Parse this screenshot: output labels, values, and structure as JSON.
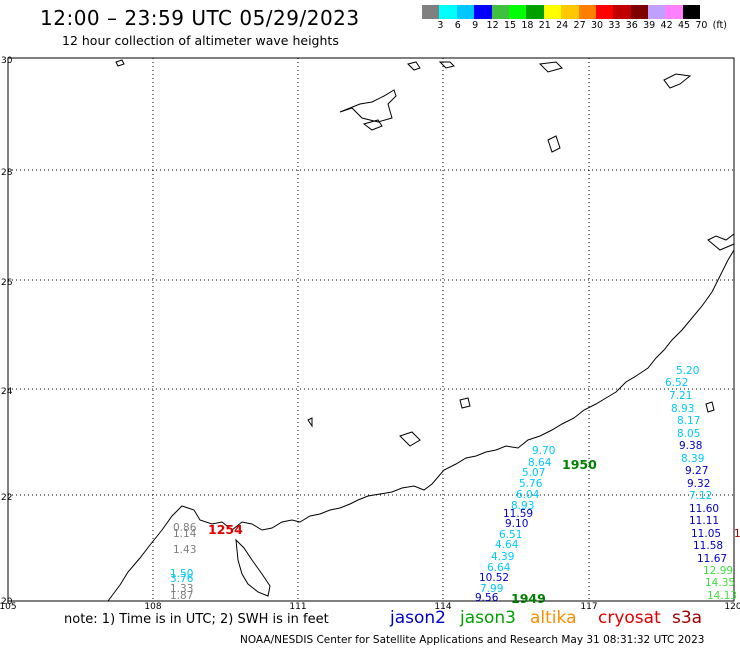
{
  "header": {
    "title": "12:00 – 23:59 UTC 05/29/2023",
    "subtitle": "12 hour collection of altimeter wave heights"
  },
  "scale": {
    "unit": "(ft)",
    "labels": [
      "3",
      "6",
      "9",
      "12",
      "15",
      "18",
      "21",
      "24",
      "27",
      "30",
      "33",
      "36",
      "39",
      "42",
      "45",
      "70"
    ],
    "colors": [
      "#808080",
      "#00ffff",
      "#00c8ff",
      "#0000ff",
      "#40c040",
      "#00ff00",
      "#00a000",
      "#ffff00",
      "#ffc800",
      "#ff8000",
      "#ff0000",
      "#c00000",
      "#800000",
      "#c0a0ff",
      "#ff80ff",
      "#000000"
    ]
  },
  "axes": {
    "lat_labels": [
      "30",
      "28",
      "26",
      "24",
      "22",
      "20"
    ],
    "lon_labels": [
      "105",
      "108",
      "111",
      "114",
      "117",
      "120"
    ]
  },
  "observations": [
    {
      "text": "5.20",
      "color": "#00c8ff"
    },
    {
      "text": "6.52",
      "color": "#00c8ff"
    },
    {
      "text": "7.21",
      "color": "#00c8ff"
    },
    {
      "text": "8.93",
      "color": "#00c8ff"
    },
    {
      "text": "8.17",
      "color": "#00c8ff"
    },
    {
      "text": "8.05",
      "color": "#00c8ff"
    },
    {
      "text": "9.38",
      "color": "#0000c8"
    },
    {
      "text": "8.39",
      "color": "#00c8ff"
    },
    {
      "text": "9.27",
      "color": "#0000c8"
    },
    {
      "text": "9.32",
      "color": "#0000c8"
    },
    {
      "text": "7.12",
      "color": "#00c8ff"
    },
    {
      "text": "11.60",
      "color": "#0000c8"
    },
    {
      "text": "11.11",
      "color": "#0000c8"
    },
    {
      "text": "11.05",
      "color": "#0000c8"
    },
    {
      "text": "11.58",
      "color": "#0000c8"
    },
    {
      "text": "11.67",
      "color": "#0000c8"
    },
    {
      "text": "12.99",
      "color": "#40e040"
    },
    {
      "text": "14.35",
      "color": "#40e040"
    },
    {
      "text": "14.13",
      "color": "#40e040"
    },
    {
      "text": "1",
      "color": "#a00000"
    },
    {
      "text": "9.70",
      "color": "#00c8ff"
    },
    {
      "text": "8.64",
      "color": "#00c8ff"
    },
    {
      "text": "5.07",
      "color": "#00c8ff"
    },
    {
      "text": "5.76",
      "color": "#00c8ff"
    },
    {
      "text": "6.04",
      "color": "#00c8ff"
    },
    {
      "text": "8.93",
      "color": "#00c8ff"
    },
    {
      "text": "11.59",
      "color": "#0000c8"
    },
    {
      "text": "9.10",
      "color": "#0000c8"
    },
    {
      "text": "6.51",
      "color": "#00c8ff"
    },
    {
      "text": "4.64",
      "color": "#00c8ff"
    },
    {
      "text": "4.39",
      "color": "#00c8ff"
    },
    {
      "text": "6.64",
      "color": "#00c8ff"
    },
    {
      "text": "10.52",
      "color": "#0000c8"
    },
    {
      "text": "7.99",
      "color": "#00c8ff"
    },
    {
      "text": "9.56",
      "color": "#0000c8"
    },
    {
      "text": "0.86",
      "color": "#808080"
    },
    {
      "text": "1.14",
      "color": "#808080"
    },
    {
      "text": "1.43",
      "color": "#808080"
    },
    {
      "text": "1.50",
      "color": "#00c8ff"
    },
    {
      "text": "3.76",
      "color": "#00c8ff"
    },
    {
      "text": "1.33",
      "color": "#808080"
    },
    {
      "text": "1.87",
      "color": "#808080"
    }
  ],
  "pass_times": [
    {
      "text": "1950",
      "color": "#008000"
    },
    {
      "text": "1949",
      "color": "#008000"
    },
    {
      "text": "1254",
      "color": "#e00000"
    }
  ],
  "footer": {
    "note": "note: 1) Time is in UTC; 2) SWH is in feet",
    "legend": [
      {
        "text": "jason2",
        "color": "#0000c8"
      },
      {
        "text": "jason3",
        "color": "#00a000"
      },
      {
        "text": "altika",
        "color": "#ff8c00"
      },
      {
        "text": "cryosat",
        "color": "#e00000"
      },
      {
        "text": "s3a",
        "color": "#a00000"
      }
    ],
    "credit": "NOAA/NESDIS Center for Satellite Applications and Research    May 31 08:31:32 UTC 2023"
  }
}
